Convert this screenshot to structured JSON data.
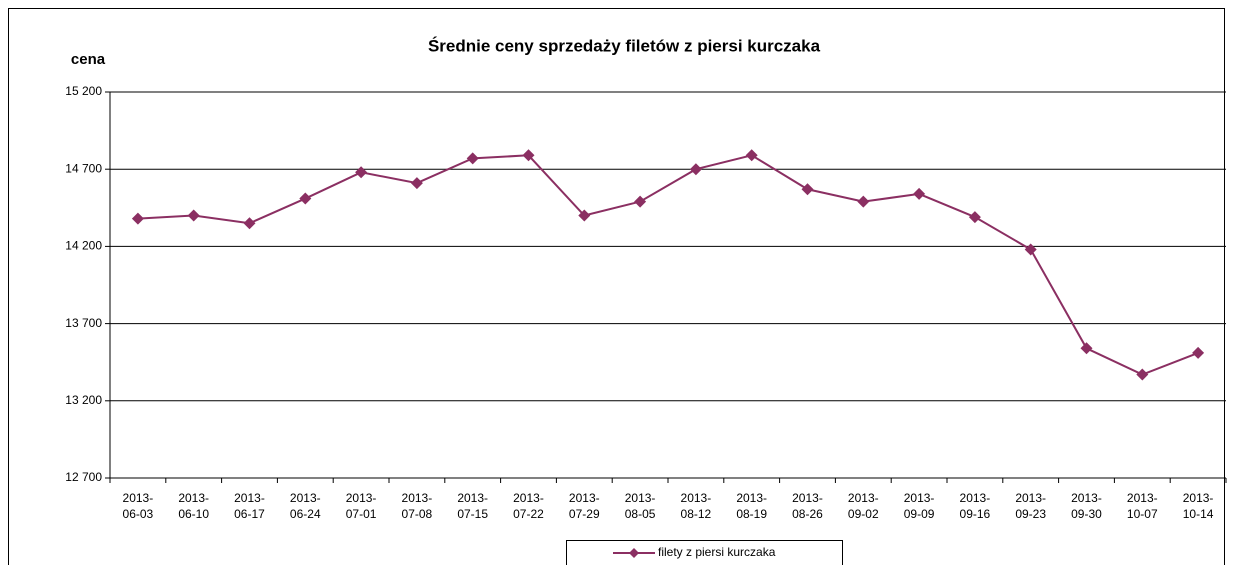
{
  "chart_data": {
    "type": "line",
    "title": "Średnie ceny sprzedaży filetów z piersi kurczaka",
    "y_label": "cena",
    "categories": [
      "2013-06-03",
      "2013-06-10",
      "2013-06-17",
      "2013-06-24",
      "2013-07-01",
      "2013-07-08",
      "2013-07-15",
      "2013-07-22",
      "2013-07-29",
      "2013-08-05",
      "2013-08-12",
      "2013-08-19",
      "2013-08-26",
      "2013-09-02",
      "2013-09-09",
      "2013-09-16",
      "2013-09-23",
      "2013-09-30",
      "2013-10-07",
      "2013-10-14"
    ],
    "series": [
      {
        "name": "filety z piersi kurczaka",
        "color": "#8b2f62",
        "values": [
          14380,
          14400,
          14350,
          14510,
          14680,
          14610,
          14770,
          14790,
          14400,
          14490,
          14700,
          14790,
          14570,
          14490,
          14540,
          14390,
          14180,
          13540,
          13370,
          13510
        ]
      }
    ],
    "ylim": [
      12700,
      15200
    ],
    "yticks": [
      {
        "value": 12700,
        "label": "12 700"
      },
      {
        "value": 13200,
        "label": "13 200"
      },
      {
        "value": 13700,
        "label": "13 700"
      },
      {
        "value": 14200,
        "label": "14 200"
      },
      {
        "value": 14700,
        "label": "14 700"
      },
      {
        "value": 15200,
        "label": "15 200"
      }
    ],
    "grid": true
  }
}
